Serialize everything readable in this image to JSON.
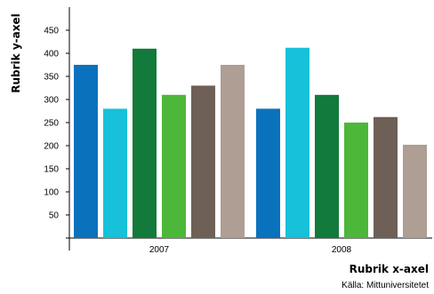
{
  "chart_data": {
    "type": "bar",
    "categories": [
      "2007",
      "2008"
    ],
    "series": [
      {
        "color": "#0a72bd",
        "values": [
          375,
          280
        ]
      },
      {
        "color": "#17c1d9",
        "values": [
          280,
          412
        ]
      },
      {
        "color": "#127a3a",
        "values": [
          410,
          310
        ]
      },
      {
        "color": "#4db73a",
        "values": [
          310,
          250
        ]
      },
      {
        "color": "#6e5f57",
        "values": [
          330,
          262
        ]
      },
      {
        "color": "#ae9e94",
        "values": [
          375,
          202
        ]
      }
    ],
    "yticks": [
      50,
      100,
      150,
      200,
      250,
      300,
      350,
      400,
      450
    ],
    "ylim": [
      0,
      500
    ],
    "ylabel": "Rubrik y-axel",
    "xlabel": "Rubrik x-axel",
    "source": "Källa: Mittuniversitetet",
    "grid": false,
    "legend": "none"
  }
}
